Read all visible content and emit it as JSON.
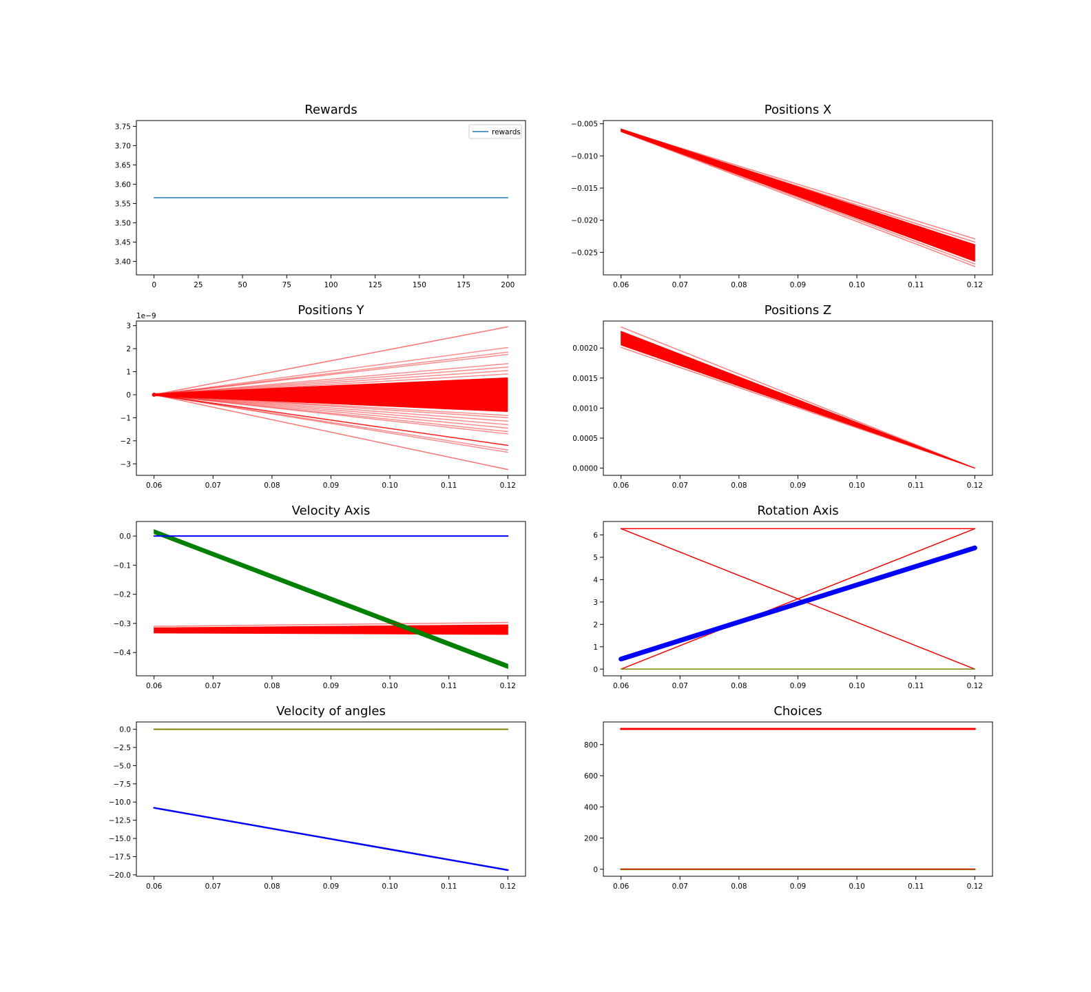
{
  "chart_data": [
    {
      "type": "line",
      "title": "Rewards",
      "xlabel": "",
      "ylabel": "",
      "xlim": [
        -10,
        210
      ],
      "ylim": [
        3.365,
        3.765
      ],
      "xticks": [
        0,
        25,
        50,
        75,
        100,
        125,
        150,
        175,
        200
      ],
      "xtick_labels": [
        "0",
        "25",
        "50",
        "75",
        "100",
        "125",
        "150",
        "175",
        "200"
      ],
      "yticks": [
        3.4,
        3.45,
        3.5,
        3.55,
        3.6,
        3.65,
        3.7,
        3.75
      ],
      "ytick_labels": [
        "3.40",
        "3.45",
        "3.50",
        "3.55",
        "3.60",
        "3.65",
        "3.70",
        "3.75"
      ],
      "grid": false,
      "legend": {
        "position": "upper-right",
        "entries": [
          {
            "label": "rewards",
            "color": "#1f77b4"
          }
        ]
      },
      "series": [
        {
          "name": "rewards",
          "color": "#1f77b4",
          "width": 1.5,
          "x": [
            0,
            200
          ],
          "y": [
            3.565,
            3.565
          ]
        }
      ]
    },
    {
      "type": "line",
      "title": "Positions X",
      "xlabel": "",
      "ylabel": "",
      "xlim": [
        0.057,
        0.123
      ],
      "ylim": [
        -0.0285,
        -0.0045
      ],
      "xticks": [
        0.06,
        0.07,
        0.08,
        0.09,
        0.1,
        0.11,
        0.12
      ],
      "xtick_labels": [
        "0.06",
        "0.07",
        "0.08",
        "0.09",
        "0.10",
        "0.11",
        "0.12"
      ],
      "yticks": [
        -0.025,
        -0.02,
        -0.015,
        -0.01,
        -0.005
      ],
      "ytick_labels": [
        "−0.025",
        "−0.020",
        "−0.015",
        "−0.010",
        "−0.005"
      ],
      "grid": false,
      "bands": [
        {
          "color": "#ff0000",
          "x": [
            0.06,
            0.12
          ],
          "y_upper": [
            -0.0058,
            -0.0238
          ],
          "y_lower": [
            -0.0062,
            -0.0264
          ]
        }
      ],
      "series": [
        {
          "color": "#ff0000",
          "opacity": 0.5,
          "x": [
            0.06,
            0.12
          ],
          "y": [
            -0.0059,
            -0.0229
          ]
        },
        {
          "color": "#ff0000",
          "opacity": 0.5,
          "x": [
            0.06,
            0.12
          ],
          "y": [
            -0.006,
            -0.0234
          ]
        },
        {
          "color": "#ff0000",
          "opacity": 0.5,
          "x": [
            0.06,
            0.12
          ],
          "y": [
            -0.0061,
            -0.0268
          ]
        },
        {
          "color": "#ff0000",
          "opacity": 0.5,
          "x": [
            0.06,
            0.12
          ],
          "y": [
            -0.0062,
            -0.0272
          ]
        }
      ]
    },
    {
      "type": "line",
      "title": "Positions Y",
      "xlabel": "",
      "ylabel": "",
      "offset_text": "1e−9",
      "xlim": [
        0.057,
        0.123
      ],
      "ylim": [
        -3.5,
        3.2
      ],
      "xticks": [
        0.06,
        0.07,
        0.08,
        0.09,
        0.1,
        0.11,
        0.12
      ],
      "xtick_labels": [
        "0.06",
        "0.07",
        "0.08",
        "0.09",
        "0.10",
        "0.11",
        "0.12"
      ],
      "yticks": [
        -3,
        -2,
        -1,
        0,
        1,
        2,
        3
      ],
      "ytick_labels": [
        "−3",
        "−2",
        "−1",
        "0",
        "1",
        "2",
        "3"
      ],
      "grid": false,
      "fan": {
        "color": "#ff0000",
        "x0": 0.06,
        "y0": 0,
        "x1": 0.12,
        "y1_upper": 0.75,
        "y1_lower": -0.75,
        "opacity": 1.0
      },
      "series": [
        {
          "color": "#ff0000",
          "opacity": 0.55,
          "x": [
            0.06,
            0.12
          ],
          "y": [
            0,
            2.95
          ]
        },
        {
          "color": "#ff0000",
          "opacity": 0.45,
          "x": [
            0.06,
            0.12
          ],
          "y": [
            0,
            2.05
          ]
        },
        {
          "color": "#ff0000",
          "opacity": 0.45,
          "x": [
            0.06,
            0.12
          ],
          "y": [
            0,
            1.85
          ]
        },
        {
          "color": "#ff0000",
          "opacity": 0.45,
          "x": [
            0.06,
            0.12
          ],
          "y": [
            0,
            1.75
          ]
        },
        {
          "color": "#ff0000",
          "opacity": 0.45,
          "x": [
            0.06,
            0.12
          ],
          "y": [
            0,
            1.35
          ]
        },
        {
          "color": "#ff0000",
          "opacity": 0.45,
          "x": [
            0.06,
            0.12
          ],
          "y": [
            0,
            1.2
          ]
        },
        {
          "color": "#ff0000",
          "opacity": 0.45,
          "x": [
            0.06,
            0.12
          ],
          "y": [
            0,
            1.05
          ]
        },
        {
          "color": "#ff0000",
          "opacity": 0.45,
          "x": [
            0.06,
            0.12
          ],
          "y": [
            0,
            0.9
          ]
        },
        {
          "color": "#ff0000",
          "opacity": 0.45,
          "x": [
            0.06,
            0.12
          ],
          "y": [
            0,
            -0.9
          ]
        },
        {
          "color": "#ff0000",
          "opacity": 0.45,
          "x": [
            0.06,
            0.12
          ],
          "y": [
            0,
            -1.0
          ]
        },
        {
          "color": "#ff0000",
          "opacity": 0.45,
          "x": [
            0.06,
            0.12
          ],
          "y": [
            0,
            -1.15
          ]
        },
        {
          "color": "#ff0000",
          "opacity": 0.45,
          "x": [
            0.06,
            0.12
          ],
          "y": [
            0,
            -1.3
          ]
        },
        {
          "color": "#ff0000",
          "opacity": 0.45,
          "x": [
            0.06,
            0.12
          ],
          "y": [
            0,
            -1.45
          ]
        },
        {
          "color": "#ff0000",
          "opacity": 0.45,
          "x": [
            0.06,
            0.12
          ],
          "y": [
            0,
            -1.6
          ]
        },
        {
          "color": "#ff0000",
          "opacity": 0.45,
          "x": [
            0.06,
            0.12
          ],
          "y": [
            0,
            -1.7
          ]
        },
        {
          "color": "#ff0000",
          "opacity": 0.9,
          "x": [
            0.06,
            0.12
          ],
          "y": [
            0,
            -2.2
          ]
        },
        {
          "color": "#ff0000",
          "opacity": 0.45,
          "x": [
            0.06,
            0.12
          ],
          "y": [
            0,
            -2.4
          ]
        },
        {
          "color": "#ff0000",
          "opacity": 0.45,
          "x": [
            0.06,
            0.12
          ],
          "y": [
            0,
            -2.5
          ]
        },
        {
          "color": "#ff0000",
          "opacity": 0.55,
          "x": [
            0.06,
            0.12
          ],
          "y": [
            0,
            -3.25
          ]
        }
      ]
    },
    {
      "type": "line",
      "title": "Positions Z",
      "xlabel": "",
      "ylabel": "",
      "xlim": [
        0.057,
        0.123
      ],
      "ylim": [
        -0.00012,
        0.00245
      ],
      "xticks": [
        0.06,
        0.07,
        0.08,
        0.09,
        0.1,
        0.11,
        0.12
      ],
      "xtick_labels": [
        "0.06",
        "0.07",
        "0.08",
        "0.09",
        "0.10",
        "0.11",
        "0.12"
      ],
      "yticks": [
        0.0,
        0.0005,
        0.001,
        0.0015,
        0.002
      ],
      "ytick_labels": [
        "0.0000",
        "0.0005",
        "0.0010",
        "0.0015",
        "0.0020"
      ],
      "grid": false,
      "bands": [
        {
          "color": "#ff0000",
          "x": [
            0.06,
            0.12
          ],
          "y_upper": [
            0.00228,
            0.0
          ],
          "y_lower": [
            0.00205,
            0.0
          ]
        }
      ],
      "series": [
        {
          "color": "#ff0000",
          "opacity": 0.5,
          "x": [
            0.06,
            0.12
          ],
          "y": [
            0.00235,
            0.0
          ]
        },
        {
          "color": "#ff0000",
          "opacity": 0.5,
          "x": [
            0.06,
            0.12
          ],
          "y": [
            0.00201,
            0.0
          ]
        }
      ]
    },
    {
      "type": "line",
      "title": "Velocity Axis",
      "xlabel": "",
      "ylabel": "",
      "xlim": [
        0.057,
        0.123
      ],
      "ylim": [
        -0.48,
        0.05
      ],
      "xticks": [
        0.06,
        0.07,
        0.08,
        0.09,
        0.1,
        0.11,
        0.12
      ],
      "xtick_labels": [
        "0.06",
        "0.07",
        "0.08",
        "0.09",
        "0.10",
        "0.11",
        "0.12"
      ],
      "yticks": [
        -0.4,
        -0.3,
        -0.2,
        -0.1,
        0.0
      ],
      "ytick_labels": [
        "−0.4",
        "−0.3",
        "−0.2",
        "−0.1",
        "0.0"
      ],
      "grid": false,
      "bands": [
        {
          "color": "#ff0000",
          "x": [
            0.06,
            0.12
          ],
          "y_upper": [
            -0.315,
            -0.305
          ],
          "y_lower": [
            -0.333,
            -0.338
          ]
        },
        {
          "color": "#008000",
          "x": [
            0.06,
            0.12
          ],
          "y_upper": [
            0.022,
            -0.44
          ],
          "y_lower": [
            0.008,
            -0.455
          ]
        }
      ],
      "series": [
        {
          "color": "#ff0000",
          "opacity": 0.5,
          "x": [
            0.06,
            0.12
          ],
          "y": [
            -0.31,
            -0.297
          ]
        },
        {
          "color": "#0000ff",
          "opacity": 1.0,
          "width": 2,
          "x": [
            0.06,
            0.12
          ],
          "y": [
            0.0,
            0.0
          ]
        }
      ]
    },
    {
      "type": "line",
      "title": "Rotation Axis",
      "xlabel": "",
      "ylabel": "",
      "xlim": [
        0.057,
        0.123
      ],
      "ylim": [
        -0.3,
        6.6
      ],
      "xticks": [
        0.06,
        0.07,
        0.08,
        0.09,
        0.1,
        0.11,
        0.12
      ],
      "xtick_labels": [
        "0.06",
        "0.07",
        "0.08",
        "0.09",
        "0.10",
        "0.11",
        "0.12"
      ],
      "yticks": [
        0,
        1,
        2,
        3,
        4,
        5,
        6
      ],
      "ytick_labels": [
        "0",
        "1",
        "2",
        "3",
        "4",
        "5",
        "6"
      ],
      "grid": false,
      "series": [
        {
          "color": "#ff0000",
          "width": 1.5,
          "x": [
            0.06,
            0.12
          ],
          "y": [
            6.28,
            6.28
          ]
        },
        {
          "color": "#ff0000",
          "width": 1.5,
          "x": [
            0.06,
            0.12
          ],
          "y": [
            6.28,
            0.0
          ]
        },
        {
          "color": "#ff0000",
          "width": 1.5,
          "x": [
            0.06,
            0.12
          ],
          "y": [
            0.0,
            6.28
          ]
        },
        {
          "color": "#808000",
          "width": 1.5,
          "x": [
            0.06,
            0.12
          ],
          "y": [
            0.0,
            0.0
          ]
        },
        {
          "color": "#0000ff",
          "width": 7,
          "x": [
            0.06,
            0.12
          ],
          "y": [
            0.45,
            5.42
          ]
        }
      ]
    },
    {
      "type": "line",
      "title": "Velocity of angles",
      "xlabel": "",
      "ylabel": "",
      "xlim": [
        0.057,
        0.123
      ],
      "ylim": [
        -20.2,
        1.0
      ],
      "xticks": [
        0.06,
        0.07,
        0.08,
        0.09,
        0.1,
        0.11,
        0.12
      ],
      "xtick_labels": [
        "0.06",
        "0.07",
        "0.08",
        "0.09",
        "0.10",
        "0.11",
        "0.12"
      ],
      "yticks": [
        -20.0,
        -17.5,
        -15.0,
        -12.5,
        -10.0,
        -7.5,
        -5.0,
        -2.5,
        0.0
      ],
      "ytick_labels": [
        "−20.0",
        "−17.5",
        "−15.0",
        "−12.5",
        "−10.0",
        "−7.5",
        "−5.0",
        "−2.5",
        "0.0"
      ],
      "grid": false,
      "series": [
        {
          "color": "#808000",
          "width": 2,
          "x": [
            0.06,
            0.12
          ],
          "y": [
            0.0,
            0.0
          ]
        },
        {
          "color": "#0000ff",
          "width": 2.5,
          "x": [
            0.06,
            0.12
          ],
          "y": [
            -10.8,
            -19.35
          ]
        }
      ]
    },
    {
      "type": "line",
      "title": "Choices",
      "xlabel": "",
      "ylabel": "",
      "xlim": [
        0.057,
        0.123
      ],
      "ylim": [
        -45,
        945
      ],
      "xticks": [
        0.06,
        0.07,
        0.08,
        0.09,
        0.1,
        0.11,
        0.12
      ],
      "xtick_labels": [
        "0.06",
        "0.07",
        "0.08",
        "0.09",
        "0.10",
        "0.11",
        "0.12"
      ],
      "yticks": [
        0,
        200,
        400,
        600,
        800
      ],
      "ytick_labels": [
        "0",
        "200",
        "400",
        "600",
        "800"
      ],
      "grid": false,
      "series": [
        {
          "color": "#ff0000",
          "width": 3,
          "x": [
            0.06,
            0.12
          ],
          "y": [
            900,
            900
          ]
        },
        {
          "color": "#808000",
          "width": 2.5,
          "x": [
            0.06,
            0.12
          ],
          "y": [
            0,
            0
          ]
        },
        {
          "color": "#ff0000",
          "width": 1,
          "x": [
            0.06,
            0.12
          ],
          "y": [
            1.5,
            1.5
          ]
        }
      ]
    }
  ]
}
